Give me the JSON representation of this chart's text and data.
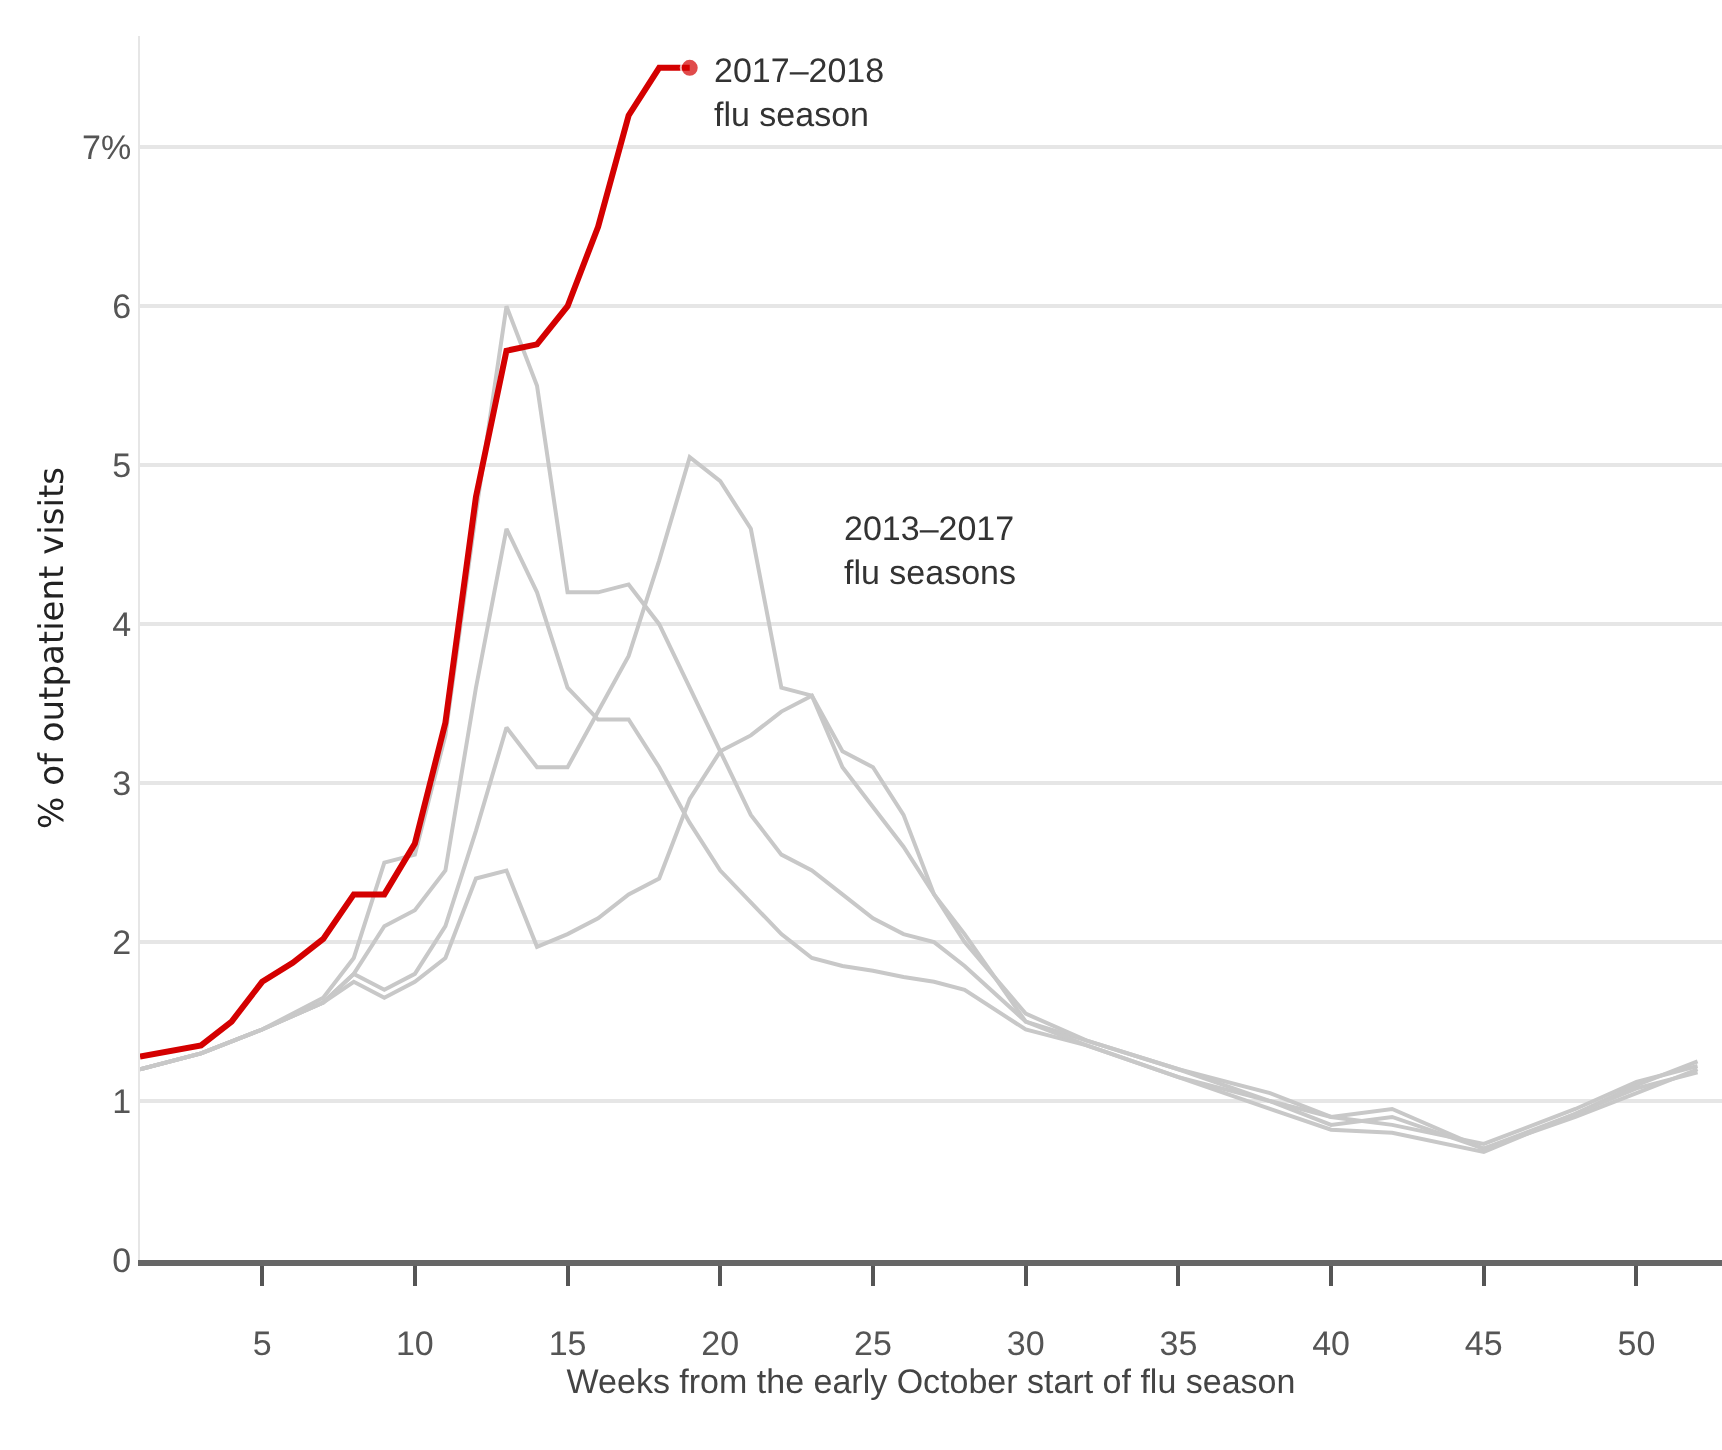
{
  "chart_data": {
    "type": "line",
    "xlabel": "Weeks from the early October start of flu season",
    "ylabel": "% of outpatient visits",
    "xlim": [
      1,
      52.8
    ],
    "xticks": [
      5,
      10,
      15,
      20,
      25,
      30,
      35,
      40,
      45,
      50
    ],
    "ylim": [
      0,
      7.7
    ],
    "yticks": [
      0,
      1,
      2,
      3,
      4,
      5,
      6,
      {
        "value": 7,
        "label": "7%"
      }
    ],
    "grid": "y",
    "annotations": [
      {
        "text": "2017–2018\nflu season",
        "x": 19,
        "y": 7.5
      },
      "2013–2017\nflu seasons"
    ],
    "series": [
      {
        "color": "#c8c8c8",
        "x": [
          1,
          3,
          5,
          7,
          8,
          9,
          10,
          11,
          12,
          13,
          14,
          15,
          16,
          17,
          18,
          19,
          20,
          21,
          22,
          23,
          24,
          25,
          26,
          27,
          28,
          30,
          32,
          35,
          38,
          40,
          42,
          45,
          48,
          50,
          52
        ],
        "values": [
          1.2,
          1.3,
          1.45,
          1.65,
          1.9,
          2.5,
          2.55,
          3.3,
          4.7,
          6.0,
          5.5,
          4.2,
          4.2,
          4.25,
          4.0,
          3.6,
          3.2,
          2.8,
          2.55,
          2.45,
          2.3,
          2.15,
          2.05,
          2.0,
          1.85,
          1.5,
          1.38,
          1.2,
          1.05,
          0.9,
          0.85,
          0.73,
          0.95,
          1.12,
          1.22
        ]
      },
      {
        "color": "#c8c8c8",
        "x": [
          1,
          3,
          5,
          7,
          8,
          9,
          10,
          11,
          12,
          13,
          14,
          15,
          16,
          17,
          18,
          19,
          20,
          21,
          22,
          23,
          24,
          25,
          26,
          27,
          28,
          30,
          32,
          35,
          38,
          40,
          42,
          45,
          48,
          50,
          52
        ],
        "values": [
          1.2,
          1.3,
          1.45,
          1.62,
          1.8,
          2.1,
          2.2,
          2.45,
          3.6,
          4.6,
          4.2,
          3.6,
          3.4,
          3.4,
          3.1,
          2.75,
          2.45,
          2.25,
          2.05,
          1.9,
          1.85,
          1.82,
          1.78,
          1.75,
          1.7,
          1.45,
          1.35,
          1.15,
          1.0,
          0.85,
          0.9,
          0.7,
          0.9,
          1.05,
          1.2
        ]
      },
      {
        "color": "#c8c8c8",
        "x": [
          1,
          3,
          5,
          7,
          8,
          9,
          10,
          11,
          12,
          13,
          14,
          15,
          16,
          17,
          18,
          19,
          20,
          21,
          22,
          23,
          24,
          25,
          26,
          27,
          28,
          30,
          32,
          35,
          38,
          40,
          42,
          45,
          48,
          50,
          52
        ],
        "values": [
          1.2,
          1.3,
          1.45,
          1.62,
          1.8,
          1.7,
          1.8,
          2.1,
          2.7,
          3.35,
          3.1,
          3.1,
          3.45,
          3.8,
          4.4,
          5.05,
          4.9,
          4.6,
          3.6,
          3.55,
          3.2,
          3.1,
          2.8,
          2.3,
          2.0,
          1.55,
          1.38,
          1.2,
          1.0,
          0.9,
          0.95,
          0.7,
          0.92,
          1.1,
          1.25
        ]
      },
      {
        "color": "#c8c8c8",
        "x": [
          1,
          3,
          5,
          7,
          8,
          9,
          10,
          11,
          12,
          13,
          14,
          15,
          16,
          17,
          18,
          19,
          20,
          21,
          22,
          23,
          24,
          25,
          26,
          27,
          28,
          30,
          32,
          35,
          38,
          40,
          42,
          45,
          48,
          50,
          52
        ],
        "values": [
          1.2,
          1.3,
          1.45,
          1.62,
          1.75,
          1.65,
          1.75,
          1.9,
          2.4,
          2.45,
          1.97,
          2.05,
          2.15,
          2.3,
          2.4,
          2.9,
          3.2,
          3.3,
          3.45,
          3.55,
          3.1,
          2.85,
          2.6,
          2.3,
          2.05,
          1.5,
          1.35,
          1.15,
          0.95,
          0.82,
          0.8,
          0.68,
          0.92,
          1.08,
          1.18
        ]
      },
      {
        "color": "#d40000",
        "x": [
          1,
          3,
          4,
          5,
          6,
          7,
          8,
          9,
          10,
          11,
          12,
          13,
          14,
          15,
          16,
          17,
          18,
          19
        ],
        "values": [
          1.28,
          1.35,
          1.5,
          1.75,
          1.87,
          2.02,
          2.3,
          2.3,
          2.62,
          3.38,
          4.8,
          5.72,
          5.76,
          6.0,
          6.5,
          7.2,
          7.5,
          7.5
        ]
      }
    ]
  }
}
